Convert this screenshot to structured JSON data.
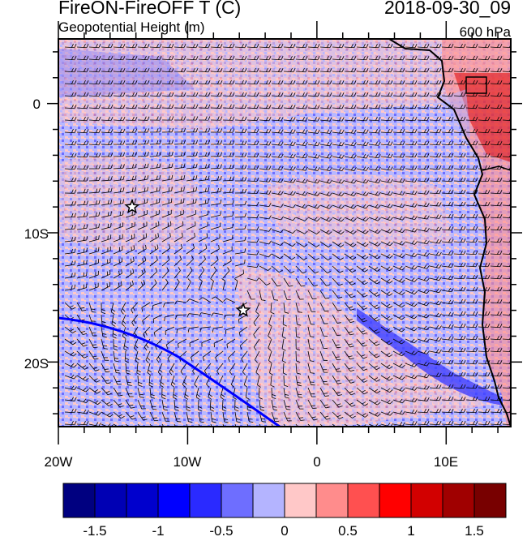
{
  "header": {
    "left_title": "FireON-FireOFF T (C)",
    "right_title": "2018-09-30_09",
    "left_subtitle": "Geopotential Height (m)",
    "right_subtitle": "600 hPa"
  },
  "map": {
    "lon_labels": [
      "20W",
      "10W",
      "0",
      "10E"
    ],
    "lat_labels": [
      "0",
      "10S",
      "20S"
    ],
    "markers": [
      {
        "name": "star-marker-west",
        "lon": -14.3,
        "lat": -8.0
      },
      {
        "name": "star-marker-center",
        "lon": -5.7,
        "lat": -16.0
      }
    ],
    "field": "temperature difference with wind barbs",
    "coastline_color": "#000000",
    "contour_color": "#0000ff"
  },
  "colorbar": {
    "colors": [
      "#000080",
      "#0000b4",
      "#0000cd",
      "#0000ff",
      "#2a2aff",
      "#6e6eff",
      "#b4b4ff",
      "#ffc8c8",
      "#ff8c8c",
      "#ff5050",
      "#ff0000",
      "#d20000",
      "#a00000",
      "#780000"
    ],
    "tick_labels": [
      "-1.5",
      "-1",
      "-0.5",
      "0",
      "0.5",
      "1",
      "1.5"
    ]
  }
}
